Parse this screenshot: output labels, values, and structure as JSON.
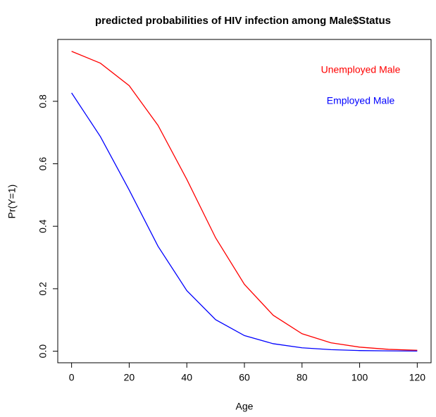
{
  "chart_data": {
    "type": "line",
    "title": "predicted probabilities of HIV infection among Male$Status",
    "xlabel": "Age",
    "ylabel": "Pr(Y=1)",
    "x": [
      0,
      10,
      20,
      30,
      40,
      50,
      60,
      70,
      80,
      90,
      100,
      110,
      120
    ],
    "series": [
      {
        "name": "Unemployed Male",
        "color": "#ff0000",
        "values": [
          0.96,
          0.922,
          0.85,
          0.723,
          0.55,
          0.363,
          0.214,
          0.115,
          0.056,
          0.027,
          0.013,
          0.006,
          0.003
        ]
      },
      {
        "name": "Employed Male",
        "color": "#0000ff",
        "values": [
          0.827,
          0.687,
          0.516,
          0.336,
          0.194,
          0.101,
          0.05,
          0.024,
          0.011,
          0.005,
          0.002,
          0.001,
          0.0005
        ]
      }
    ],
    "xlim": [
      -4.8,
      124.8
    ],
    "xticks": [
      0,
      20,
      40,
      60,
      80,
      100,
      120
    ],
    "ylim": [
      -0.037,
      0.998
    ],
    "yticks": [
      {
        "value": 0,
        "label": "0.0"
      },
      0.2,
      0.4,
      0.6,
      0.8
    ],
    "legend": "top-right"
  }
}
